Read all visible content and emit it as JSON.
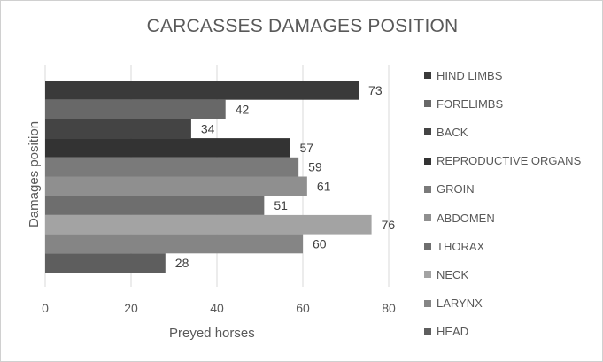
{
  "chart_data": {
    "type": "bar",
    "orientation": "horizontal",
    "title": "CARCASSES DAMAGES POSITION",
    "xlabel": "Preyed horses",
    "ylabel": "Damages position",
    "xlim": [
      0,
      80
    ],
    "x_ticks": [
      "0",
      "20",
      "40",
      "60",
      "80"
    ],
    "grid": true,
    "legend_position": "right",
    "categories_top_to_bottom": [
      "HIND LIMBS",
      "FORELIMBS",
      "BACK",
      "REPRODUCTIVE ORGANS",
      "GROIN",
      "ABDOMEN",
      "THORAX",
      "NECK",
      "LARYNX",
      "HEAD"
    ],
    "values_top_to_bottom": [
      73,
      42,
      34,
      57,
      59,
      61,
      51,
      76,
      60,
      28
    ],
    "colors_top_to_bottom": [
      "#3a3a3a",
      "#686868",
      "#444444",
      "#333333",
      "#7a7a7a",
      "#8f8f8f",
      "#6e6e6e",
      "#a3a3a3",
      "#858585",
      "#5e5e5e"
    ]
  }
}
